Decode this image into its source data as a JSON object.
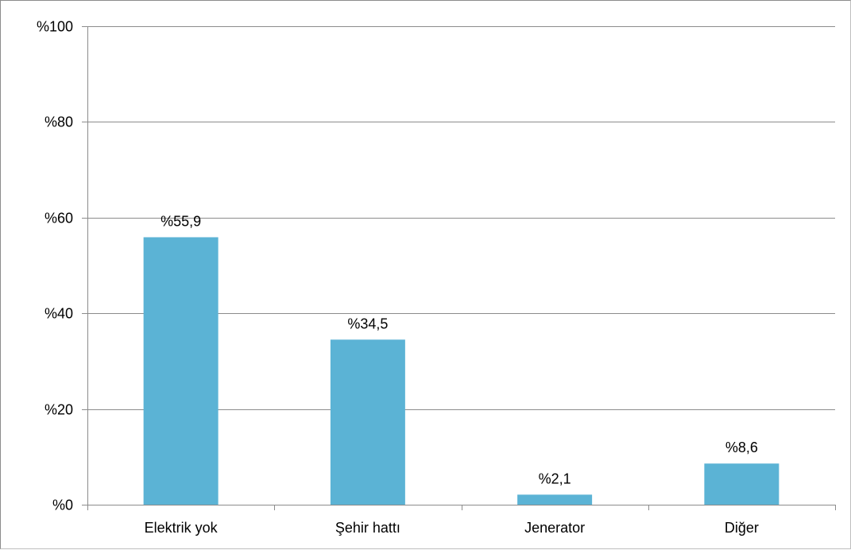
{
  "chart_data": {
    "type": "bar",
    "categories": [
      "Elektrik yok",
      "Şehir hattı",
      "Jenerator",
      "Diğer"
    ],
    "values": [
      55.9,
      34.5,
      2.1,
      8.6
    ],
    "data_labels": [
      "%55,9",
      "%34,5",
      "%2,1",
      "%8,6"
    ],
    "title": "",
    "xlabel": "",
    "ylabel": "",
    "ylim": [
      0,
      100
    ],
    "yticks": [
      0,
      20,
      40,
      60,
      80,
      100
    ],
    "ytick_labels": [
      "%0",
      "%20",
      "%40",
      "%60",
      "%80",
      "%100"
    ],
    "grid": true,
    "legend": "none",
    "bar_color": "#5BB3D5",
    "grid_color": "#8c8c8c"
  }
}
